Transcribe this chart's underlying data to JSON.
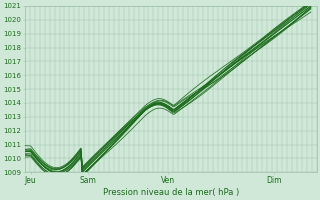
{
  "xlabel": "Pression niveau de la mer( hPa )",
  "xtick_labels": [
    "Jeu",
    "Sam",
    "Ven",
    "Dim"
  ],
  "xtick_positions": [
    0.02,
    0.22,
    0.5,
    0.87
  ],
  "ylim": [
    1009,
    1021
  ],
  "ytick_start": 1009,
  "ytick_end": 1021,
  "bg_color": "#d0e8d8",
  "grid_color": "#9dbdaa",
  "line_color": "#1a6b1a",
  "fig_width": 3.2,
  "fig_height": 2.0,
  "dpi": 100,
  "n_lines": 11,
  "n_points": 200
}
